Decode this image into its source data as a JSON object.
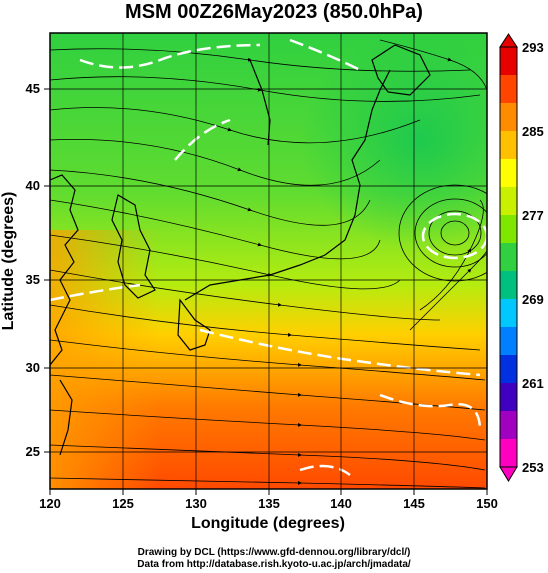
{
  "title": "MSM 00Z26May2023 (850.0hPa)",
  "x_axis": {
    "label": "Longitude (degrees)",
    "ticks": [
      "120",
      "125",
      "130",
      "135",
      "140",
      "145",
      "150"
    ]
  },
  "y_axis": {
    "label": "Latitude  (degrees)",
    "ticks": [
      "25",
      "30",
      "35",
      "40",
      "45"
    ]
  },
  "colorbar": {
    "ticks": [
      "293",
      "285",
      "277",
      "269",
      "261",
      "253"
    ],
    "colors": [
      "#e60000",
      "#ff4500",
      "#ff8c00",
      "#ffc000",
      "#ffff00",
      "#c8f000",
      "#7fe600",
      "#30d040",
      "#00c080",
      "#00c8ff",
      "#0080ff",
      "#0030e0",
      "#4000c0",
      "#a000c0",
      "#ff00c0"
    ]
  },
  "map_data": {
    "lon_range": [
      120,
      150
    ],
    "lat_range": [
      22.5,
      48
    ],
    "grid_lon": [
      120,
      125,
      130,
      135,
      140,
      145,
      150
    ],
    "grid_lat": [
      25,
      30,
      35,
      40,
      45
    ],
    "low_center": {
      "lon": 147.5,
      "lat": 37.5
    },
    "field": "temperature (K) with streamlines"
  },
  "credits": {
    "line1": "Drawing by DCL (https://www.gfd-dennou.org/library/dcl/)",
    "line2": "Data from http://database.rish.kyoto-u.ac.jp/arch/jmadata/"
  }
}
